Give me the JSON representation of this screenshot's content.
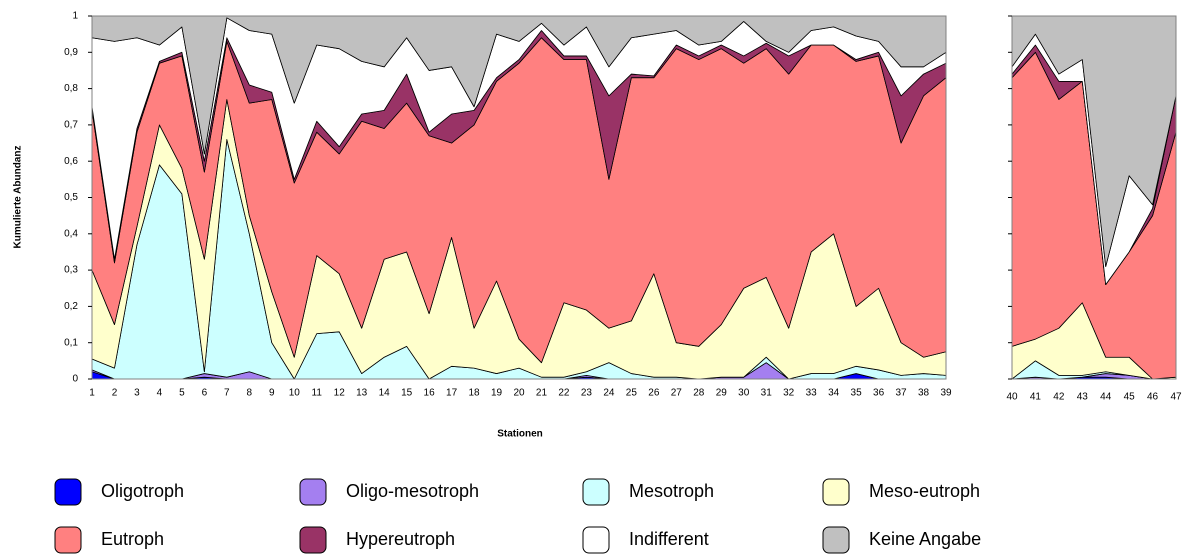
{
  "chart_data": {
    "type": "area",
    "y_label": "Kumulierte Abundanz",
    "x_label": "Stationen",
    "categories": [
      "1",
      "2",
      "3",
      "4",
      "5",
      "6",
      "7",
      "8",
      "9",
      "10",
      "11",
      "12",
      "13",
      "14",
      "15",
      "16",
      "17",
      "18",
      "19",
      "20",
      "21",
      "22",
      "23",
      "24",
      "25",
      "26",
      "27",
      "28",
      "29",
      "30",
      "31",
      "32",
      "33",
      "34",
      "35",
      "36",
      "37",
      "38",
      "39",
      "40",
      "41",
      "42",
      "43",
      "44",
      "45",
      "46",
      "47"
    ],
    "ylim": [
      0,
      1
    ],
    "yticks": [
      0,
      {
        "value": 0.1,
        "label": "0,1"
      },
      {
        "value": 0.2,
        "label": "0,2"
      },
      {
        "value": 0.3,
        "label": "0,3"
      },
      {
        "value": 0.4,
        "label": "0,4"
      },
      {
        "value": 0.5,
        "label": "0,5"
      },
      {
        "value": 0.6,
        "label": "0,6"
      },
      {
        "value": 0.7,
        "label": "0,7"
      },
      {
        "value": 0.8,
        "label": "0,8"
      },
      {
        "value": 0.9,
        "label": "0,9"
      },
      1
    ],
    "stacked": true,
    "series": [
      {
        "name": "Oligotroph",
        "color": "#0000ff",
        "values": [
          0.02,
          0,
          0,
          0,
          0,
          0.005,
          0,
          0,
          0,
          0,
          0,
          0,
          0,
          0,
          0,
          0,
          0,
          0,
          0,
          0,
          0,
          0,
          0.005,
          0,
          0,
          0,
          0,
          0,
          0,
          0,
          0,
          0,
          0,
          0,
          0.015,
          0,
          0,
          0,
          0,
          0,
          0,
          0,
          0.005,
          0.005,
          0,
          0,
          0
        ]
      },
      {
        "name": "Oligo-mesotroph",
        "color": "#a47ff0",
        "values": [
          0.005,
          0,
          0,
          0,
          0,
          0.01,
          0.005,
          0.02,
          0,
          0,
          0,
          0,
          0,
          0,
          0,
          0,
          0,
          0,
          0,
          0,
          0,
          0,
          0.005,
          0,
          0,
          0,
          0,
          0,
          0.005,
          0.005,
          0.045,
          0,
          0,
          0,
          0,
          0,
          0,
          0,
          0,
          0,
          0.005,
          0,
          0,
          0.01,
          0.01,
          0,
          0
        ]
      },
      {
        "name": "Mesotroph",
        "color": "#ccffff",
        "values": [
          0.03,
          0.03,
          0.37,
          0.59,
          0.51,
          0.005,
          0.655,
          0.38,
          0.1,
          0,
          0.125,
          0.13,
          0.015,
          0.06,
          0.09,
          0,
          0.035,
          0.03,
          0.015,
          0.03,
          0.005,
          0.005,
          0.01,
          0.045,
          0.015,
          0.005,
          0.005,
          0,
          0,
          0,
          0.015,
          0,
          0.015,
          0.015,
          0.02,
          0.025,
          0.01,
          0.015,
          0.01,
          0,
          0.045,
          0.01,
          0.005,
          0.005,
          0,
          0,
          0
        ]
      },
      {
        "name": "Meso-eutroph",
        "color": "#ffffcc",
        "values": [
          0.245,
          0.12,
          0.05,
          0.11,
          0.07,
          0.31,
          0.11,
          0.05,
          0.14,
          0.06,
          0.215,
          0.16,
          0.125,
          0.27,
          0.26,
          0.18,
          0.355,
          0.11,
          0.255,
          0.08,
          0.04,
          0.205,
          0.17,
          0.095,
          0.145,
          0.285,
          0.095,
          0.09,
          0.145,
          0.245,
          0.22,
          0.14,
          0.335,
          0.385,
          0.165,
          0.225,
          0.09,
          0.045,
          0.065,
          0.09,
          0.06,
          0.13,
          0.2,
          0.04,
          0.05,
          0,
          0.005
        ]
      },
      {
        "name": "Eutroph",
        "color": "#ff8080",
        "values": [
          0.44,
          0.17,
          0.26,
          0.17,
          0.31,
          0.24,
          0.16,
          0.31,
          0.53,
          0.48,
          0.34,
          0.33,
          0.57,
          0.36,
          0.41,
          0.49,
          0.26,
          0.56,
          0.55,
          0.76,
          0.895,
          0.67,
          0.69,
          0.41,
          0.67,
          0.54,
          0.81,
          0.79,
          0.76,
          0.62,
          0.63,
          0.7,
          0.57,
          0.52,
          0.675,
          0.64,
          0.55,
          0.72,
          0.755,
          0.74,
          0.79,
          0.63,
          0.61,
          0.2,
          0.29,
          0.45,
          0.675
        ]
      },
      {
        "name": "Hypereutroph",
        "color": "#993366",
        "values": [
          0.01,
          0.01,
          0.01,
          0.005,
          0.01,
          0.03,
          0.01,
          0.05,
          0.02,
          0.01,
          0.03,
          0.02,
          0.02,
          0.05,
          0.08,
          0.01,
          0.08,
          0.04,
          0.01,
          0.01,
          0.02,
          0.01,
          0.01,
          0.23,
          0.01,
          0.005,
          0.01,
          0.01,
          0.01,
          0.02,
          0.015,
          0.05,
          0,
          0,
          0.005,
          0.01,
          0.13,
          0.06,
          0.04,
          0.01,
          0.02,
          0.05,
          0,
          0,
          0,
          0.02,
          0.1
        ]
      },
      {
        "name": "Indifferent",
        "color": "#ffffff",
        "values": [
          0.19,
          0.6,
          0.25,
          0.045,
          0.07,
          0.02,
          0.055,
          0.15,
          0.16,
          0.21,
          0.21,
          0.27,
          0.145,
          0.12,
          0.1,
          0.17,
          0.13,
          0.01,
          0.12,
          0.05,
          0.02,
          0.03,
          0.08,
          0.08,
          0.1,
          0.115,
          0.04,
          0.03,
          0.01,
          0.095,
          0.005,
          0.01,
          0.04,
          0.05,
          0.065,
          0.03,
          0.08,
          0.02,
          0.03,
          0.02,
          0.03,
          0.02,
          0.06,
          0.05,
          0.21,
          0.01,
          0
        ]
      },
      {
        "name": "Keine Angabe",
        "color": "#c0c0c0",
        "values": [
          0.06,
          0.07,
          0.06,
          0.08,
          0.03,
          0.38,
          0.005,
          0.04,
          0.05,
          0.24,
          0.08,
          0.09,
          0.125,
          0.14,
          0.06,
          0.15,
          0.14,
          0.25,
          0.05,
          0.07,
          0.02,
          0.08,
          0.03,
          0.14,
          0.06,
          0.05,
          0.04,
          0.08,
          0.07,
          0.015,
          0.07,
          0.1,
          0.04,
          0.03,
          0.055,
          0.07,
          0.14,
          0.14,
          0.1,
          0.14,
          0.05,
          0.16,
          0.12,
          0.69,
          0.44,
          0.52,
          0.22
        ]
      }
    ]
  }
}
